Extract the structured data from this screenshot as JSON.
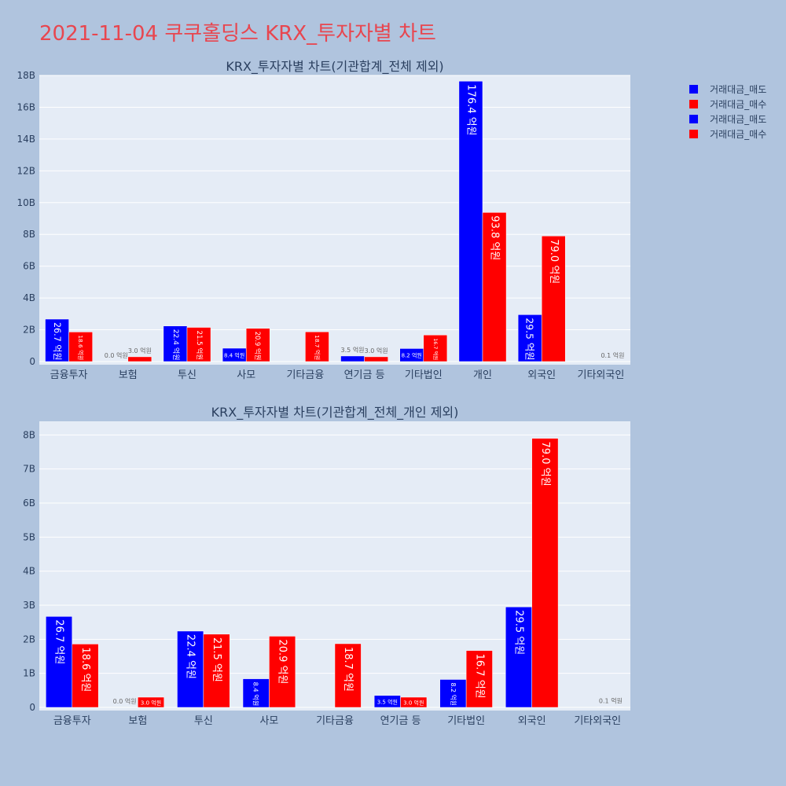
{
  "page_title": "2021-11-04 쿠쿠홀딩스 KRX_투자자별 차트",
  "legend": {
    "entries": [
      {
        "label": "거래대금_매도",
        "color": "#0000ff"
      },
      {
        "label": "거래대금_매수",
        "color": "#ff0000"
      },
      {
        "label": "거래대금_매도",
        "color": "#0000ff"
      },
      {
        "label": "거래대금_매수",
        "color": "#ff0000"
      }
    ]
  },
  "colors": {
    "sell": "#0000ff",
    "buy": "#ff0000",
    "plot_bg": "#e5ecf6",
    "page_bg": "#b0c4de"
  },
  "chart_data": [
    {
      "type": "bar",
      "title": "KRX_투자자별 차트(기관합계_전체 제외)",
      "categories": [
        "금융투자",
        "보험",
        "투신",
        "사모",
        "기타금융",
        "연기금 등",
        "기타법인",
        "개인",
        "외국인",
        "기타외국인"
      ],
      "series": [
        {
          "name": "거래대금_매도",
          "color": "#0000ff",
          "values": [
            2670000000,
            0,
            2240000000,
            840000000,
            0,
            350000000,
            820000000,
            17640000000,
            2950000000,
            0
          ],
          "labels": [
            "26.7 억원",
            "0.0 억원",
            "22.4 억원",
            "8.4 억원",
            "",
            "3.5 억원",
            "8.2 억원",
            "176.4 억원",
            "29.5 억원",
            ""
          ]
        },
        {
          "name": "거래대금_매수",
          "color": "#ff0000",
          "values": [
            1860000000,
            300000000,
            2150000000,
            2090000000,
            1870000000,
            300000000,
            1670000000,
            9380000000,
            7900000000,
            10000000
          ],
          "labels": [
            "18.6 억원",
            "3.0 억원",
            "21.5 억원",
            "20.9 억원",
            "18.7 억원",
            "3.0 억원",
            "16.7 억원",
            "93.8 억원",
            "79.0 억원",
            "0.1 억원"
          ]
        }
      ],
      "ylim": [
        0,
        18000000000
      ],
      "ytick_values": [
        0,
        2000000000,
        4000000000,
        6000000000,
        8000000000,
        10000000000,
        12000000000,
        14000000000,
        16000000000,
        18000000000
      ],
      "ytick_labels": [
        "0",
        "2B",
        "4B",
        "6B",
        "8B",
        "10B",
        "12B",
        "14B",
        "16B",
        "18B"
      ],
      "grid": true
    },
    {
      "type": "bar",
      "title": "KRX_투자자별 차트(기관합계_전체_개인 제외)",
      "categories": [
        "금융투자",
        "보험",
        "투신",
        "사모",
        "기타금융",
        "연기금 등",
        "기타법인",
        "외국인",
        "기타외국인"
      ],
      "series": [
        {
          "name": "거래대금_매도",
          "color": "#0000ff",
          "values": [
            2670000000,
            0,
            2240000000,
            840000000,
            0,
            350000000,
            820000000,
            2950000000,
            0
          ],
          "labels": [
            "26.7 억원",
            "0.0 억원",
            "22.4 억원",
            "8.4 억원",
            "",
            "3.5 억원",
            "8.2 억원",
            "29.5 억원",
            ""
          ]
        },
        {
          "name": "거래대금_매수",
          "color": "#ff0000",
          "values": [
            1860000000,
            300000000,
            2150000000,
            2090000000,
            1870000000,
            300000000,
            1670000000,
            7900000000,
            10000000
          ],
          "labels": [
            "18.6 억원",
            "3.0 억원",
            "21.5 억원",
            "20.9 억원",
            "18.7 억원",
            "3.0 억원",
            "16.7 억원",
            "79.0 억원",
            "0.1 억원"
          ]
        }
      ],
      "ylim": [
        0,
        8400000000
      ],
      "ytick_values": [
        0,
        1000000000,
        2000000000,
        3000000000,
        4000000000,
        5000000000,
        6000000000,
        7000000000,
        8000000000
      ],
      "ytick_labels": [
        "0",
        "1B",
        "2B",
        "3B",
        "4B",
        "5B",
        "6B",
        "7B",
        "8B"
      ],
      "grid": true
    }
  ]
}
